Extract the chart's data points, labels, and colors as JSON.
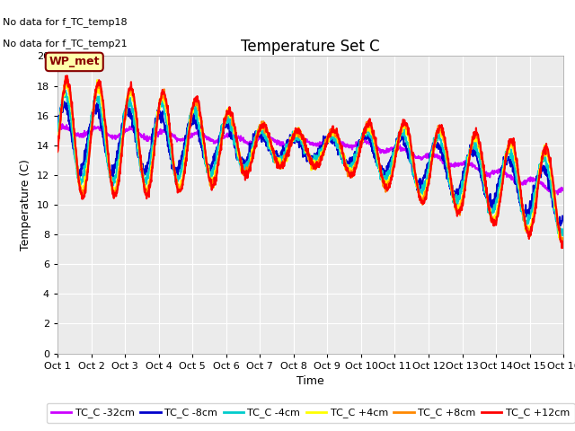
{
  "title": "Temperature Set C",
  "xlabel": "Time",
  "ylabel": "Temperature (C)",
  "ylim": [
    0,
    20
  ],
  "xlim": [
    0,
    15
  ],
  "xtick_labels": [
    "Oct 1",
    "Oct 2",
    "Oct 3",
    "Oct 4",
    "Oct 5",
    "Oct 6",
    "Oct 7",
    "Oct 8",
    "Oct 9",
    "Oct 10",
    "Oct 11",
    "Oct 12",
    "Oct 13",
    "Oct 14",
    "Oct 15",
    "Oct 16"
  ],
  "ytick_values": [
    0,
    2,
    4,
    6,
    8,
    10,
    12,
    14,
    16,
    18,
    20
  ],
  "no_data_text": [
    "No data for f_TC_temp18",
    "No data for f_TC_temp21"
  ],
  "wp_met_label": "WP_met",
  "wp_met_color": "#880000",
  "wp_met_bg": "#FFFFAA",
  "lines": {
    "TC_C -32cm": {
      "color": "#CC00FF",
      "linewidth": 1.5
    },
    "TC_C -8cm": {
      "color": "#0000CC",
      "linewidth": 1.5
    },
    "TC_C -4cm": {
      "color": "#00CCCC",
      "linewidth": 1.5
    },
    "TC_C +4cm": {
      "color": "#FFFF00",
      "linewidth": 1.8
    },
    "TC_C +8cm": {
      "color": "#FF8800",
      "linewidth": 1.5
    },
    "TC_C +12cm": {
      "color": "#FF0000",
      "linewidth": 1.5
    }
  },
  "background_color": "#EBEBEB",
  "grid_color": "#FFFFFF",
  "title_fontsize": 12,
  "label_fontsize": 9,
  "tick_fontsize": 8
}
